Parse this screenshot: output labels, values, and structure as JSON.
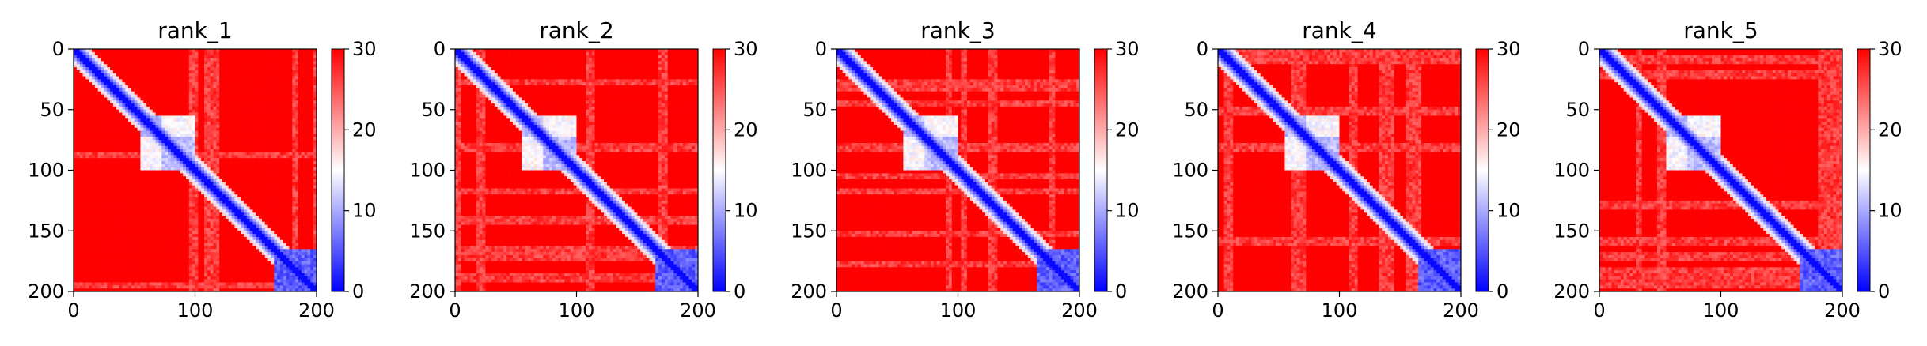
{
  "chart_data": [
    {
      "type": "heatmap",
      "title": "rank_1",
      "xlim": [
        0,
        200
      ],
      "ylim": [
        200,
        0
      ],
      "xticks": [
        "0",
        "100",
        "200"
      ],
      "yticks": [
        "0",
        "50",
        "100",
        "150",
        "200"
      ],
      "colorbar": {
        "min": 0,
        "max": 30,
        "ticks": [
          "0",
          "10",
          "20",
          "30"
        ],
        "colors": [
          "#0000ff",
          "#ffffff",
          "#ff0000"
        ]
      },
      "domains": [
        {
          "start": 55,
          "end": 100,
          "sub": [
            [
              55,
              72
            ],
            [
              72,
              100
            ]
          ]
        },
        {
          "start": 165,
          "end": 200,
          "sub": []
        }
      ],
      "variant": 1
    },
    {
      "type": "heatmap",
      "title": "rank_2",
      "xlim": [
        0,
        200
      ],
      "ylim": [
        200,
        0
      ],
      "xticks": [
        "0",
        "100",
        "200"
      ],
      "yticks": [
        "0",
        "50",
        "100",
        "150",
        "200"
      ],
      "colorbar": {
        "min": 0,
        "max": 30,
        "ticks": [
          "0",
          "10",
          "20",
          "30"
        ],
        "colors": [
          "#0000ff",
          "#ffffff",
          "#ff0000"
        ]
      },
      "domains": [
        {
          "start": 55,
          "end": 100,
          "sub": [
            [
              55,
              72
            ],
            [
              72,
              100
            ]
          ]
        },
        {
          "start": 165,
          "end": 200,
          "sub": []
        }
      ],
      "variant": 2
    },
    {
      "type": "heatmap",
      "title": "rank_3",
      "xlim": [
        0,
        200
      ],
      "ylim": [
        200,
        0
      ],
      "xticks": [
        "0",
        "100",
        "200"
      ],
      "yticks": [
        "0",
        "50",
        "100",
        "150",
        "200"
      ],
      "colorbar": {
        "min": 0,
        "max": 30,
        "ticks": [
          "0",
          "10",
          "20",
          "30"
        ],
        "colors": [
          "#0000ff",
          "#ffffff",
          "#ff0000"
        ]
      },
      "domains": [
        {
          "start": 55,
          "end": 100,
          "sub": [
            [
              55,
              72
            ],
            [
              72,
              100
            ]
          ]
        },
        {
          "start": 165,
          "end": 200,
          "sub": []
        }
      ],
      "variant": 3
    },
    {
      "type": "heatmap",
      "title": "rank_4",
      "xlim": [
        0,
        200
      ],
      "ylim": [
        200,
        0
      ],
      "xticks": [
        "0",
        "100",
        "200"
      ],
      "yticks": [
        "0",
        "50",
        "100",
        "150",
        "200"
      ],
      "colorbar": {
        "min": 0,
        "max": 30,
        "ticks": [
          "0",
          "10",
          "20",
          "30"
        ],
        "colors": [
          "#0000ff",
          "#ffffff",
          "#ff0000"
        ]
      },
      "domains": [
        {
          "start": 55,
          "end": 100,
          "sub": [
            [
              55,
              72
            ],
            [
              72,
              100
            ]
          ]
        },
        {
          "start": 165,
          "end": 200,
          "sub": []
        }
      ],
      "variant": 4
    },
    {
      "type": "heatmap",
      "title": "rank_5",
      "xlim": [
        0,
        200
      ],
      "ylim": [
        200,
        0
      ],
      "xticks": [
        "0",
        "100",
        "200"
      ],
      "yticks": [
        "0",
        "50",
        "100",
        "150",
        "200"
      ],
      "colorbar": {
        "min": 0,
        "max": 30,
        "ticks": [
          "0",
          "10",
          "20",
          "30"
        ],
        "colors": [
          "#0000ff",
          "#ffffff",
          "#ff0000"
        ]
      },
      "domains": [
        {
          "start": 55,
          "end": 100,
          "sub": [
            [
              55,
              72
            ],
            [
              72,
              100
            ]
          ]
        },
        {
          "start": 165,
          "end": 200,
          "sub": []
        }
      ],
      "variant": 5
    }
  ]
}
